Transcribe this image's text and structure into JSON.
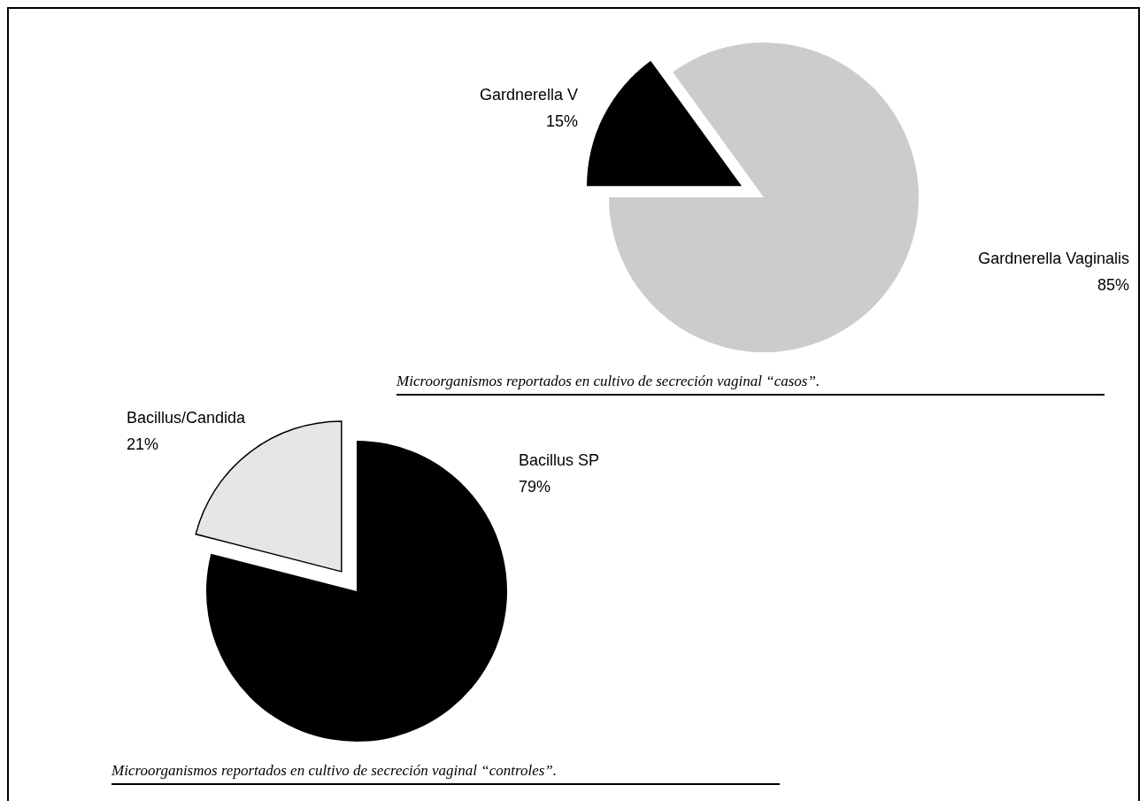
{
  "chart_data": [
    {
      "type": "pie",
      "categories": [
        "Gardnerella V",
        "Gardnerella Vaginalis"
      ],
      "values": [
        15,
        85
      ],
      "value_labels": [
        "15%",
        "85%"
      ],
      "colors": [
        "#000000",
        "#cccccc"
      ],
      "annotations": [
        "Microorganismos reportados en cultivo de secreción vaginal “casos”."
      ]
    },
    {
      "type": "pie",
      "categories": [
        "Bacillus/Candida",
        "Bacillus SP"
      ],
      "values": [
        21,
        79
      ],
      "value_labels": [
        "21%",
        "79%"
      ],
      "colors": [
        "#e6e6e6",
        "#000000"
      ],
      "annotations": [
        "Microorganismos reportados en cultivo de secreción vaginal “controles”."
      ]
    }
  ]
}
